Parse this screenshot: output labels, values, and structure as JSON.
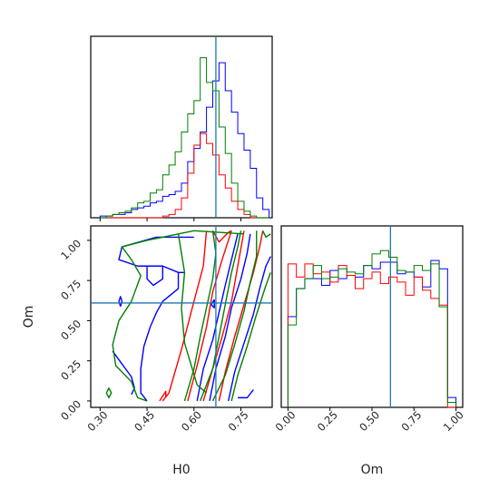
{
  "chart_data": {
    "type": "corner",
    "parameters": [
      "H0",
      "Om"
    ],
    "truths": {
      "H0": 0.67,
      "Om": 0.61
    },
    "colors": {
      "blue": "#0000ff",
      "red": "#ff0000",
      "green": "#008000",
      "truth": "#1f77b4",
      "axes": "#000000"
    },
    "series": [
      {},
      {},
      {}
    ],
    "panels": {
      "h0_hist": {
        "xlim": [
          0.27,
          0.85
        ],
        "ylim": [
          0,
          1.1
        ],
        "xticks": [
          0.3,
          0.45,
          0.6,
          0.75
        ],
        "x": [
          0.3,
          0.32,
          0.34,
          0.36,
          0.38,
          0.4,
          0.42,
          0.44,
          0.46,
          0.48,
          0.5,
          0.52,
          0.54,
          0.56,
          0.58,
          0.6,
          0.62,
          0.64,
          0.66,
          0.68,
          0.7,
          0.72,
          0.74,
          0.76,
          0.78,
          0.8,
          0.82
        ],
        "series_values": [
          [
            0.01,
            0.01,
            0.02,
            0.02,
            0.03,
            0.05,
            0.06,
            0.07,
            0.09,
            0.1,
            0.13,
            0.14,
            0.16,
            0.21,
            0.34,
            0.42,
            0.52,
            0.67,
            0.83,
            0.94,
            0.77,
            0.64,
            0.51,
            0.41,
            0.3,
            0.12,
            0.05
          ],
          [
            0.0,
            0.0,
            0.0,
            0.0,
            0.0,
            0.0,
            0.0,
            0.0,
            0.0,
            0.0,
            0.01,
            0.02,
            0.05,
            0.12,
            0.27,
            0.44,
            0.51,
            0.45,
            0.38,
            0.26,
            0.18,
            0.1,
            0.05,
            0.02,
            0.0,
            0.0,
            0.0
          ],
          [
            0.0,
            0.01,
            0.02,
            0.03,
            0.04,
            0.06,
            0.09,
            0.1,
            0.15,
            0.17,
            0.26,
            0.32,
            0.4,
            0.52,
            0.63,
            0.71,
            0.97,
            0.82,
            0.77,
            0.55,
            0.39,
            0.21,
            0.1,
            0.04,
            0.01,
            0.0,
            0.0
          ]
        ]
      },
      "om_hist": {
        "xlim": [
          -0.04,
          1.04
        ],
        "ylim": [
          0,
          1.1
        ],
        "xticks": [
          0.0,
          0.25,
          0.5,
          0.75,
          1.0
        ],
        "xtick_labels": [
          "0.00",
          "0.25",
          "0.50",
          "0.75",
          "1.00"
        ],
        "x": [
          0.0,
          0.05,
          0.1,
          0.15,
          0.2,
          0.25,
          0.3,
          0.35,
          0.4,
          0.45,
          0.5,
          0.55,
          0.6,
          0.65,
          0.7,
          0.75,
          0.8,
          0.85,
          0.9,
          0.95
        ],
        "series_values": [
          [
            0.55,
            0.72,
            0.78,
            0.78,
            0.74,
            0.83,
            0.78,
            0.8,
            0.79,
            0.86,
            0.84,
            0.88,
            0.88,
            0.81,
            0.82,
            0.79,
            0.73,
            0.89,
            0.84,
            0.06
          ],
          [
            0.87,
            0.79,
            0.87,
            0.81,
            0.82,
            0.76,
            0.86,
            0.8,
            0.72,
            0.78,
            0.82,
            0.75,
            0.79,
            0.76,
            0.68,
            0.79,
            0.71,
            0.66,
            0.62,
            0.0
          ],
          [
            0.5,
            0.72,
            0.78,
            0.86,
            0.78,
            0.79,
            0.84,
            0.82,
            0.81,
            0.86,
            0.93,
            0.95,
            0.91,
            0.83,
            0.82,
            0.86,
            0.83,
            0.87,
            0.61,
            0.03
          ]
        ]
      },
      "scatter": {
        "xlim": [
          0.27,
          0.85
        ],
        "ylim": [
          -0.04,
          1.09
        ],
        "xticks": [
          0.3,
          0.45,
          0.6,
          0.75
        ],
        "yticks": [
          0.0,
          0.25,
          0.5,
          0.75,
          1.0
        ],
        "contours": [
          [
            [
              [
                0.6,
                1.02
              ],
              [
                0.48,
                1.02
              ],
              [
                0.37,
                0.96
              ],
              [
                0.36,
                0.88
              ],
              [
                0.42,
                0.84
              ],
              [
                0.5,
                0.84
              ],
              [
                0.55,
                0.8
              ],
              [
                0.55,
                0.7
              ],
              [
                0.5,
                0.62
              ],
              [
                0.48,
                0.55
              ],
              [
                0.46,
                0.46
              ],
              [
                0.44,
                0.34
              ],
              [
                0.43,
                0.2
              ],
              [
                0.43,
                0.05
              ],
              [
                0.45,
                0.0
              ]
            ],
            [
              [
                0.61,
                0.0
              ],
              [
                0.63,
                0.2
              ],
              [
                0.66,
                0.38
              ],
              [
                0.68,
                0.55
              ],
              [
                0.7,
                0.72
              ],
              [
                0.72,
                0.88
              ],
              [
                0.74,
                1.04
              ]
            ],
            [
              [
                0.65,
                0.0
              ],
              [
                0.67,
                0.2
              ],
              [
                0.7,
                0.4
              ],
              [
                0.72,
                0.58
              ],
              [
                0.75,
                0.76
              ],
              [
                0.77,
                0.92
              ],
              [
                0.78,
                1.04
              ]
            ],
            [
              [
                0.71,
                0.0
              ],
              [
                0.73,
                0.18
              ],
              [
                0.76,
                0.36
              ],
              [
                0.79,
                0.54
              ],
              [
                0.81,
                0.7
              ],
              [
                0.83,
                0.84
              ],
              [
                0.845,
                0.9
              ]
            ],
            [
              [
                0.45,
                0.84
              ],
              [
                0.5,
                0.84
              ],
              [
                0.5,
                0.76
              ],
              [
                0.47,
                0.72
              ],
              [
                0.45,
                0.76
              ],
              [
                0.45,
                0.84
              ]
            ],
            [
              [
                0.34,
                0.31
              ],
              [
                0.37,
                0.23
              ],
              [
                0.4,
                0.15
              ],
              [
                0.41,
                0.08
              ],
              [
                0.4,
                0.04
              ]
            ],
            [
              [
                0.36,
                0.62
              ],
              [
                0.365,
                0.65
              ],
              [
                0.37,
                0.62
              ],
              [
                0.365,
                0.59
              ],
              [
                0.36,
                0.62
              ]
            ],
            [
              [
                0.55,
                0.8
              ],
              [
                0.57,
                0.8
              ]
            ],
            [
              [
                0.74,
                0.02
              ],
              [
                0.77,
                0.02
              ],
              [
                0.79,
                0.07
              ]
            ],
            [
              [
                0.655,
                0.6
              ],
              [
                0.665,
                0.63
              ],
              [
                0.665,
                0.58
              ],
              [
                0.655,
                0.6
              ]
            ]
          ],
          [
            [
              [
                0.58,
                0.0
              ],
              [
                0.61,
                0.22
              ],
              [
                0.64,
                0.46
              ],
              [
                0.66,
                0.68
              ],
              [
                0.69,
                0.88
              ],
              [
                0.72,
                1.06
              ]
            ],
            [
              [
                0.63,
                0.0
              ],
              [
                0.66,
                0.2
              ],
              [
                0.69,
                0.4
              ],
              [
                0.72,
                0.62
              ],
              [
                0.74,
                0.84
              ],
              [
                0.76,
                1.06
              ]
            ],
            [
              [
                0.5,
                0.0
              ],
              [
                0.52,
                0.05
              ],
              [
                0.56,
                0.32
              ],
              [
                0.6,
                0.62
              ],
              [
                0.63,
                0.84
              ],
              [
                0.64,
                1.06
              ]
            ],
            [
              [
                0.68,
                0.0
              ],
              [
                0.7,
                0.18
              ],
              [
                0.73,
                0.4
              ],
              [
                0.76,
                0.6
              ],
              [
                0.79,
                0.8
              ],
              [
                0.81,
                0.96
              ],
              [
                0.82,
                1.06
              ]
            ],
            [
              [
                0.49,
                0.0
              ],
              [
                0.51,
                0.06
              ],
              [
                0.51,
                0.02
              ]
            ],
            [
              [
                0.66,
                1.06
              ],
              [
                0.68,
                0.99
              ],
              [
                0.71,
                1.05
              ],
              [
                0.72,
                1.06
              ]
            ]
          ],
          [
            [
              [
                0.76,
                1.04
              ],
              [
                0.6,
                1.06
              ],
              [
                0.45,
                1.0
              ],
              [
                0.37,
                0.96
              ],
              [
                0.4,
                0.88
              ],
              [
                0.43,
                0.78
              ],
              [
                0.4,
                0.62
              ],
              [
                0.36,
                0.5
              ],
              [
                0.34,
                0.35
              ],
              [
                0.35,
                0.22
              ],
              [
                0.4,
                0.12
              ],
              [
                0.42,
                0.02
              ],
              [
                0.45,
                0.0
              ]
            ],
            [
              [
                0.55,
                1.04
              ],
              [
                0.57,
                0.8
              ],
              [
                0.56,
                0.58
              ],
              [
                0.57,
                0.36
              ],
              [
                0.61,
                0.1
              ],
              [
                0.64,
                0.05
              ]
            ],
            [
              [
                0.57,
                0.0
              ],
              [
                0.6,
                0.2
              ],
              [
                0.62,
                0.4
              ],
              [
                0.64,
                0.58
              ],
              [
                0.66,
                0.76
              ],
              [
                0.67,
                0.92
              ],
              [
                0.66,
                1.06
              ]
            ],
            [
              [
                0.62,
                0.0
              ],
              [
                0.66,
                0.2
              ],
              [
                0.68,
                0.4
              ],
              [
                0.7,
                0.6
              ],
              [
                0.72,
                0.8
              ],
              [
                0.74,
                0.96
              ],
              [
                0.75,
                1.06
              ]
            ],
            [
              [
                0.66,
                0.0
              ],
              [
                0.7,
                0.16
              ],
              [
                0.73,
                0.35
              ],
              [
                0.76,
                0.56
              ],
              [
                0.78,
                0.74
              ],
              [
                0.8,
                0.9
              ],
              [
                0.8,
                1.06
              ]
            ],
            [
              [
                0.72,
                0.0
              ],
              [
                0.74,
                0.16
              ],
              [
                0.77,
                0.34
              ],
              [
                0.8,
                0.54
              ],
              [
                0.83,
                0.72
              ],
              [
                0.845,
                0.8
              ]
            ],
            [
              [
                0.32,
                0.05
              ],
              [
                0.328,
                0.08
              ],
              [
                0.336,
                0.05
              ],
              [
                0.328,
                0.02
              ],
              [
                0.32,
                0.05
              ]
            ],
            [
              [
                0.82,
                1.06
              ],
              [
                0.83,
                1.02
              ],
              [
                0.845,
                1.04
              ]
            ]
          ]
        ]
      }
    },
    "xlabels": [
      "H0",
      "Om"
    ],
    "ylabels": [
      "Om"
    ]
  }
}
